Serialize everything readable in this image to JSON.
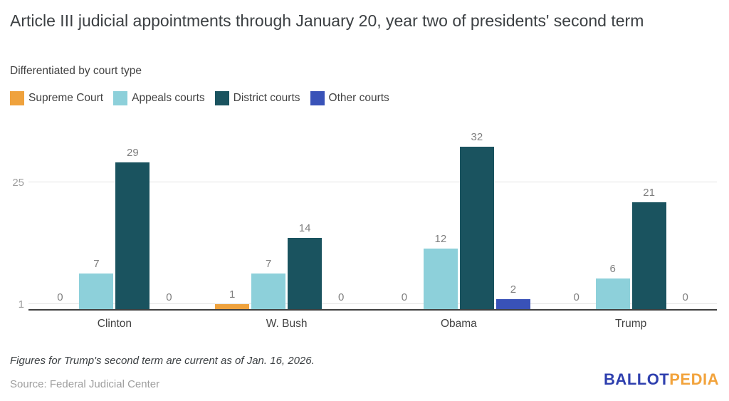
{
  "header": {
    "title": "Article III judicial appointments through January 20, year two of presidents' second term",
    "subtitle": "Differentiated by court type"
  },
  "chart_data": {
    "type": "bar",
    "title": "Article III judicial appointments through January 20, year two of presidents' second term",
    "subtitle": "Differentiated by court type",
    "categories": [
      "Clinton",
      "W. Bush",
      "Obama",
      "Trump"
    ],
    "series": [
      {
        "name": "Supreme Court",
        "color": "#efa23d",
        "values": [
          0,
          1,
          0,
          0
        ]
      },
      {
        "name": "Appeals courts",
        "color": "#8dd0da",
        "values": [
          7,
          7,
          12,
          6
        ]
      },
      {
        "name": "District courts",
        "color": "#1a535f",
        "values": [
          29,
          14,
          32,
          21
        ]
      },
      {
        "name": "Other courts",
        "color": "#3952b8",
        "values": [
          0,
          0,
          2,
          0
        ]
      }
    ],
    "y_axis": {
      "tick_labels": [
        "1",
        "25"
      ],
      "tick_values": [
        1,
        25
      ],
      "range": [
        0,
        37.6
      ],
      "grid": true
    },
    "legend_position": "top-left",
    "value_labels_shown": true
  },
  "footer": {
    "footnote": "Figures for Trump's second term are current as of Jan. 16, 2026.",
    "source": "Source: Federal Judicial Center",
    "logo": {
      "part1": "BALLOT",
      "part2": "PEDIA"
    }
  },
  "colors": {
    "supreme": "#efa23d",
    "appeals": "#8dd0da",
    "district": "#1a535f",
    "other": "#3952b8",
    "axis": "#3f3f3f",
    "gridline": "#e4e4e4",
    "logo_blue": "#2e3fae",
    "logo_orange": "#f2a33c"
  }
}
